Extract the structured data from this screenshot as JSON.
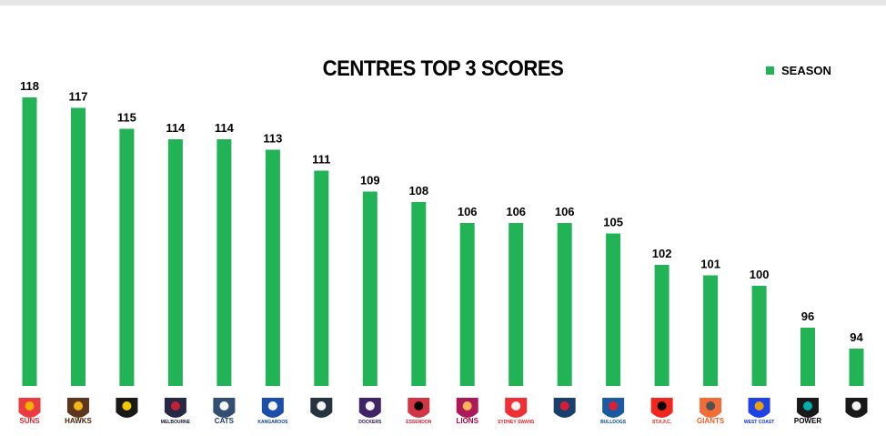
{
  "chart_data": {
    "type": "bar",
    "title": "CENTRES TOP 3 SCORES",
    "legend": {
      "position": "top-right",
      "label": "SEASON",
      "color": "#21b356"
    },
    "series": [
      {
        "name": "SEASON",
        "color": "#21b356",
        "values": [
          118,
          117,
          115,
          114,
          114,
          113,
          111,
          109,
          108,
          106,
          106,
          106,
          105,
          102,
          101,
          100,
          96,
          94
        ]
      }
    ],
    "categories": [
      "Gold Coast Suns",
      "Hawthorn Hawks",
      "Richmond Tigers",
      "Melbourne Demons",
      "Geelong Cats",
      "North Melbourne Kangaroos",
      "Carlton Blues",
      "Fremantle Dockers",
      "Essendon Bombers",
      "Brisbane Lions",
      "Sydney Swans",
      "Adelaide Crows",
      "Western Bulldogs",
      "St Kilda Saints",
      "GWS Giants",
      "West Coast Eagles",
      "Port Adelaide Power",
      "Collingwood Magpies"
    ],
    "logos": [
      {
        "icon": "suns-logo-icon",
        "text": "SUNS",
        "color": "#e8262d",
        "accent": "#f7b500"
      },
      {
        "icon": "hawks-logo-icon",
        "text": "HAWKS",
        "color": "#4d2004",
        "accent": "#fbbf15"
      },
      {
        "icon": "tigers-logo-icon",
        "text": "",
        "color": "#000000",
        "accent": "#ffd200"
      },
      {
        "icon": "demons-logo-icon",
        "text": "MELBOURNE",
        "color": "#0f1131",
        "accent": "#cc2031"
      },
      {
        "icon": "cats-logo-icon",
        "text": "CATS",
        "color": "#1c3c63",
        "accent": "#ffffff"
      },
      {
        "icon": "kangaroos-logo-icon",
        "text": "KANGAROOS",
        "color": "#013b9f",
        "accent": "#ffffff"
      },
      {
        "icon": "blues-logo-icon",
        "text": "",
        "color": "#0e1e2d",
        "accent": "#ffffff"
      },
      {
        "icon": "dockers-logo-icon",
        "text": "DOCKERS",
        "color": "#2a0d54",
        "accent": "#ffffff"
      },
      {
        "icon": "bombers-logo-icon",
        "text": "ESSENDON",
        "color": "#cc2031",
        "accent": "#000000"
      },
      {
        "icon": "lions-logo-icon",
        "text": "LIONS",
        "color": "#a30046",
        "accent": "#fdbe57"
      },
      {
        "icon": "swans-logo-icon",
        "text": "SYDNEY SWANS",
        "color": "#ed171f",
        "accent": "#ffffff"
      },
      {
        "icon": "crows-logo-icon",
        "text": "",
        "color": "#002b5c",
        "accent": "#e21937"
      },
      {
        "icon": "bulldogs-logo-icon",
        "text": "BULLDOGS",
        "color": "#014896",
        "accent": "#e41e31"
      },
      {
        "icon": "saints-logo-icon",
        "text": "ST.K.F.C.",
        "color": "#ed0f05",
        "accent": "#000000"
      },
      {
        "icon": "giants-logo-icon",
        "text": "GIANTS",
        "color": "#f15c22",
        "accent": "#4a4f55"
      },
      {
        "icon": "eagles-logo-icon",
        "text": "WEST COAST",
        "color": "#062ee2",
        "accent": "#f2a900"
      },
      {
        "icon": "power-logo-icon",
        "text": "POWER",
        "color": "#000000",
        "accent": "#01b5b6"
      },
      {
        "icon": "magpies-logo-icon",
        "text": "",
        "color": "#000000",
        "accent": "#ffffff"
      }
    ]
  }
}
